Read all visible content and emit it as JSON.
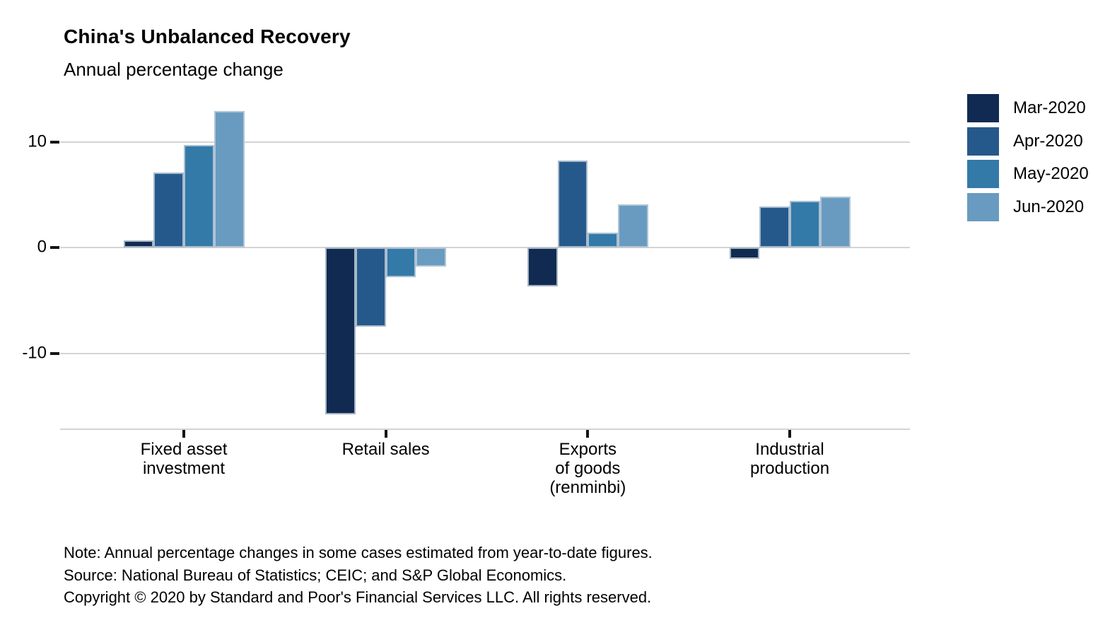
{
  "header": {
    "title": "China's Unbalanced Recovery",
    "subtitle": "Annual percentage change"
  },
  "chart_data": {
    "type": "bar",
    "title": "China's Unbalanced Recovery",
    "subtitle": "Annual percentage change",
    "xlabel": "",
    "ylabel": "Annual percentage change",
    "categories": [
      "Fixed asset investment",
      "Retail sales",
      "Exports of goods (renminbi)",
      "Industrial production"
    ],
    "category_label_lines": [
      [
        "Fixed asset",
        "investment"
      ],
      [
        "Retail sales"
      ],
      [
        "Exports",
        "of goods",
        "(renminbi)"
      ],
      [
        "Industrial",
        "production"
      ]
    ],
    "series": [
      {
        "name": "Mar-2020",
        "color": "#112a52",
        "values": [
          0.7,
          -15.8,
          -3.7,
          -1.1
        ]
      },
      {
        "name": "Apr-2020",
        "color": "#26598b",
        "values": [
          7.1,
          -7.5,
          8.2,
          3.9
        ]
      },
      {
        "name": "May-2020",
        "color": "#337aa8",
        "values": [
          9.7,
          -2.8,
          1.4,
          4.4
        ]
      },
      {
        "name": "Jun-2020",
        "color": "#699bc1",
        "values": [
          12.9,
          -1.8,
          4.1,
          4.8
        ]
      }
    ],
    "yticks": [
      10,
      0,
      -10
    ],
    "ylim": [
      -17.2,
      13.4
    ],
    "grid": "horizontal",
    "legend_position": "right"
  },
  "footnotes": {
    "note": "Note: Annual percentage changes in some cases estimated from year-to-date figures.",
    "source": "Source: National Bureau of Statistics; CEIC; and S&P Global Economics.",
    "copyright": "Copyright © 2020 by Standard and Poor's Financial Services LLC. All rights reserved."
  }
}
